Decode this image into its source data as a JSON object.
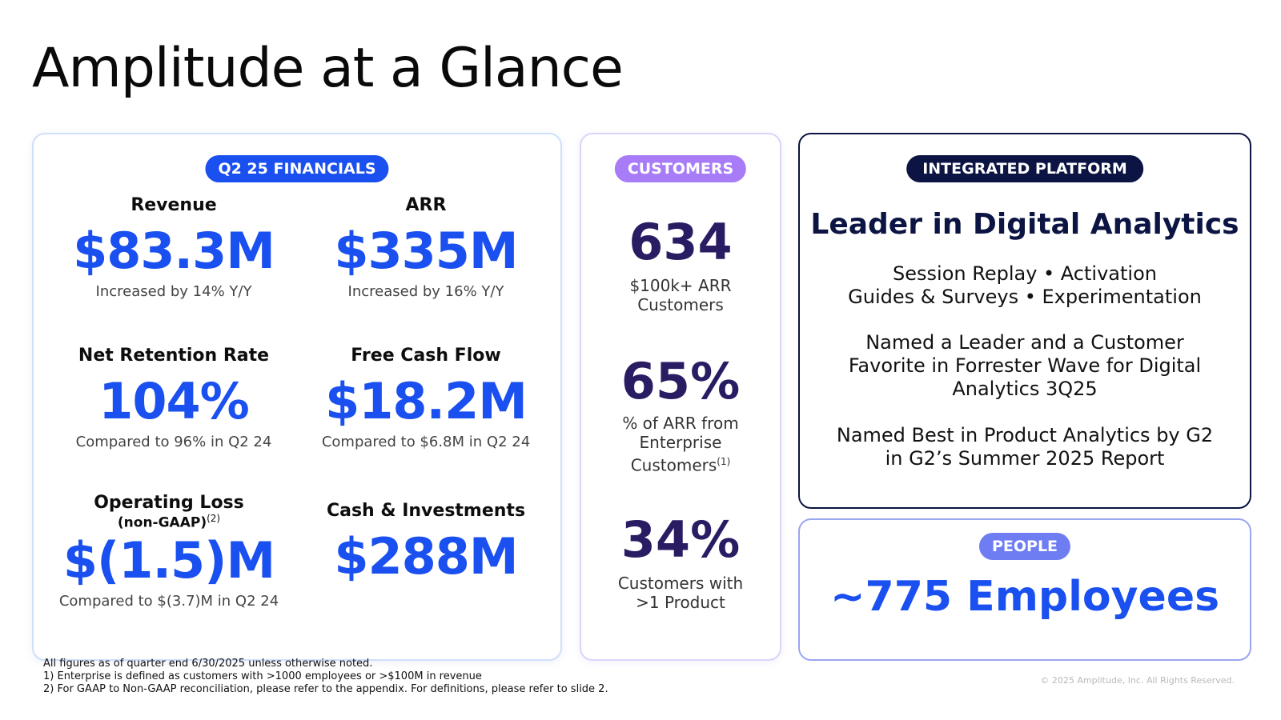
{
  "title": "Amplitude at a Glance",
  "financials": {
    "badge": "Q2 25 FINANCIALS",
    "revenue": {
      "label": "Revenue",
      "value": "$83.3M",
      "note": "Increased by 14% Y/Y"
    },
    "arr": {
      "label": "ARR",
      "value": "$335M",
      "note": "Increased by 16% Y/Y"
    },
    "nrr": {
      "label": "Net Retention Rate",
      "value": "104%",
      "note": "Compared to 96% in Q2 24"
    },
    "fcf": {
      "label": "Free Cash Flow",
      "value": "$18.2M",
      "note": "Compared to $6.8M in Q2 24"
    },
    "oploss": {
      "label": "Operating Loss",
      "sublabel": "(non-GAAP)",
      "footnote_ref": "(2)",
      "value": "$(1.5)M",
      "note": "Compared to $(3.7)M in Q2 24"
    },
    "cash": {
      "label": "Cash & Investments",
      "value": "$288M"
    }
  },
  "customers": {
    "badge": "CUSTOMERS",
    "items": [
      {
        "value": "634",
        "label_line1": "$100k+ ARR",
        "label_line2": "Customers",
        "label_line3": "",
        "footnote_ref": ""
      },
      {
        "value": "65%",
        "label_line1": "% of ARR from",
        "label_line2": "Enterprise",
        "label_line3": "Customers",
        "footnote_ref": "(1)"
      },
      {
        "value": "34%",
        "label_line1": "Customers with",
        "label_line2": ">1 Product",
        "label_line3": "",
        "footnote_ref": ""
      }
    ]
  },
  "platform": {
    "badge": "INTEGRATED PLATFORM",
    "headline": "Leader in Digital Analytics",
    "features_line1": "Session Replay • Activation",
    "features_line2": "Guides & Surveys • Experimentation",
    "forrester_line1": "Named a Leader and a Customer",
    "forrester_line2": "Favorite in Forrester Wave for Digital",
    "forrester_line3": "Analytics 3Q25",
    "g2_line1": "Named Best in Product Analytics by G2",
    "g2_line2": "in G2’s Summer 2025 Report"
  },
  "people": {
    "badge": "PEOPLE",
    "value": "~775 Employees"
  },
  "footnotes": {
    "line1": "All figures as of quarter end 6/30/2025 unless otherwise noted.",
    "line2": "1)  Enterprise is defined as customers with >1000 employees or >$100M in revenue",
    "line3": "2) For GAAP to Non-GAAP reconciliation, please refer to the appendix. For definitions, please refer to slide 2."
  },
  "copyright": "© 2025 Amplitude, Inc.  All Rights Reserved."
}
